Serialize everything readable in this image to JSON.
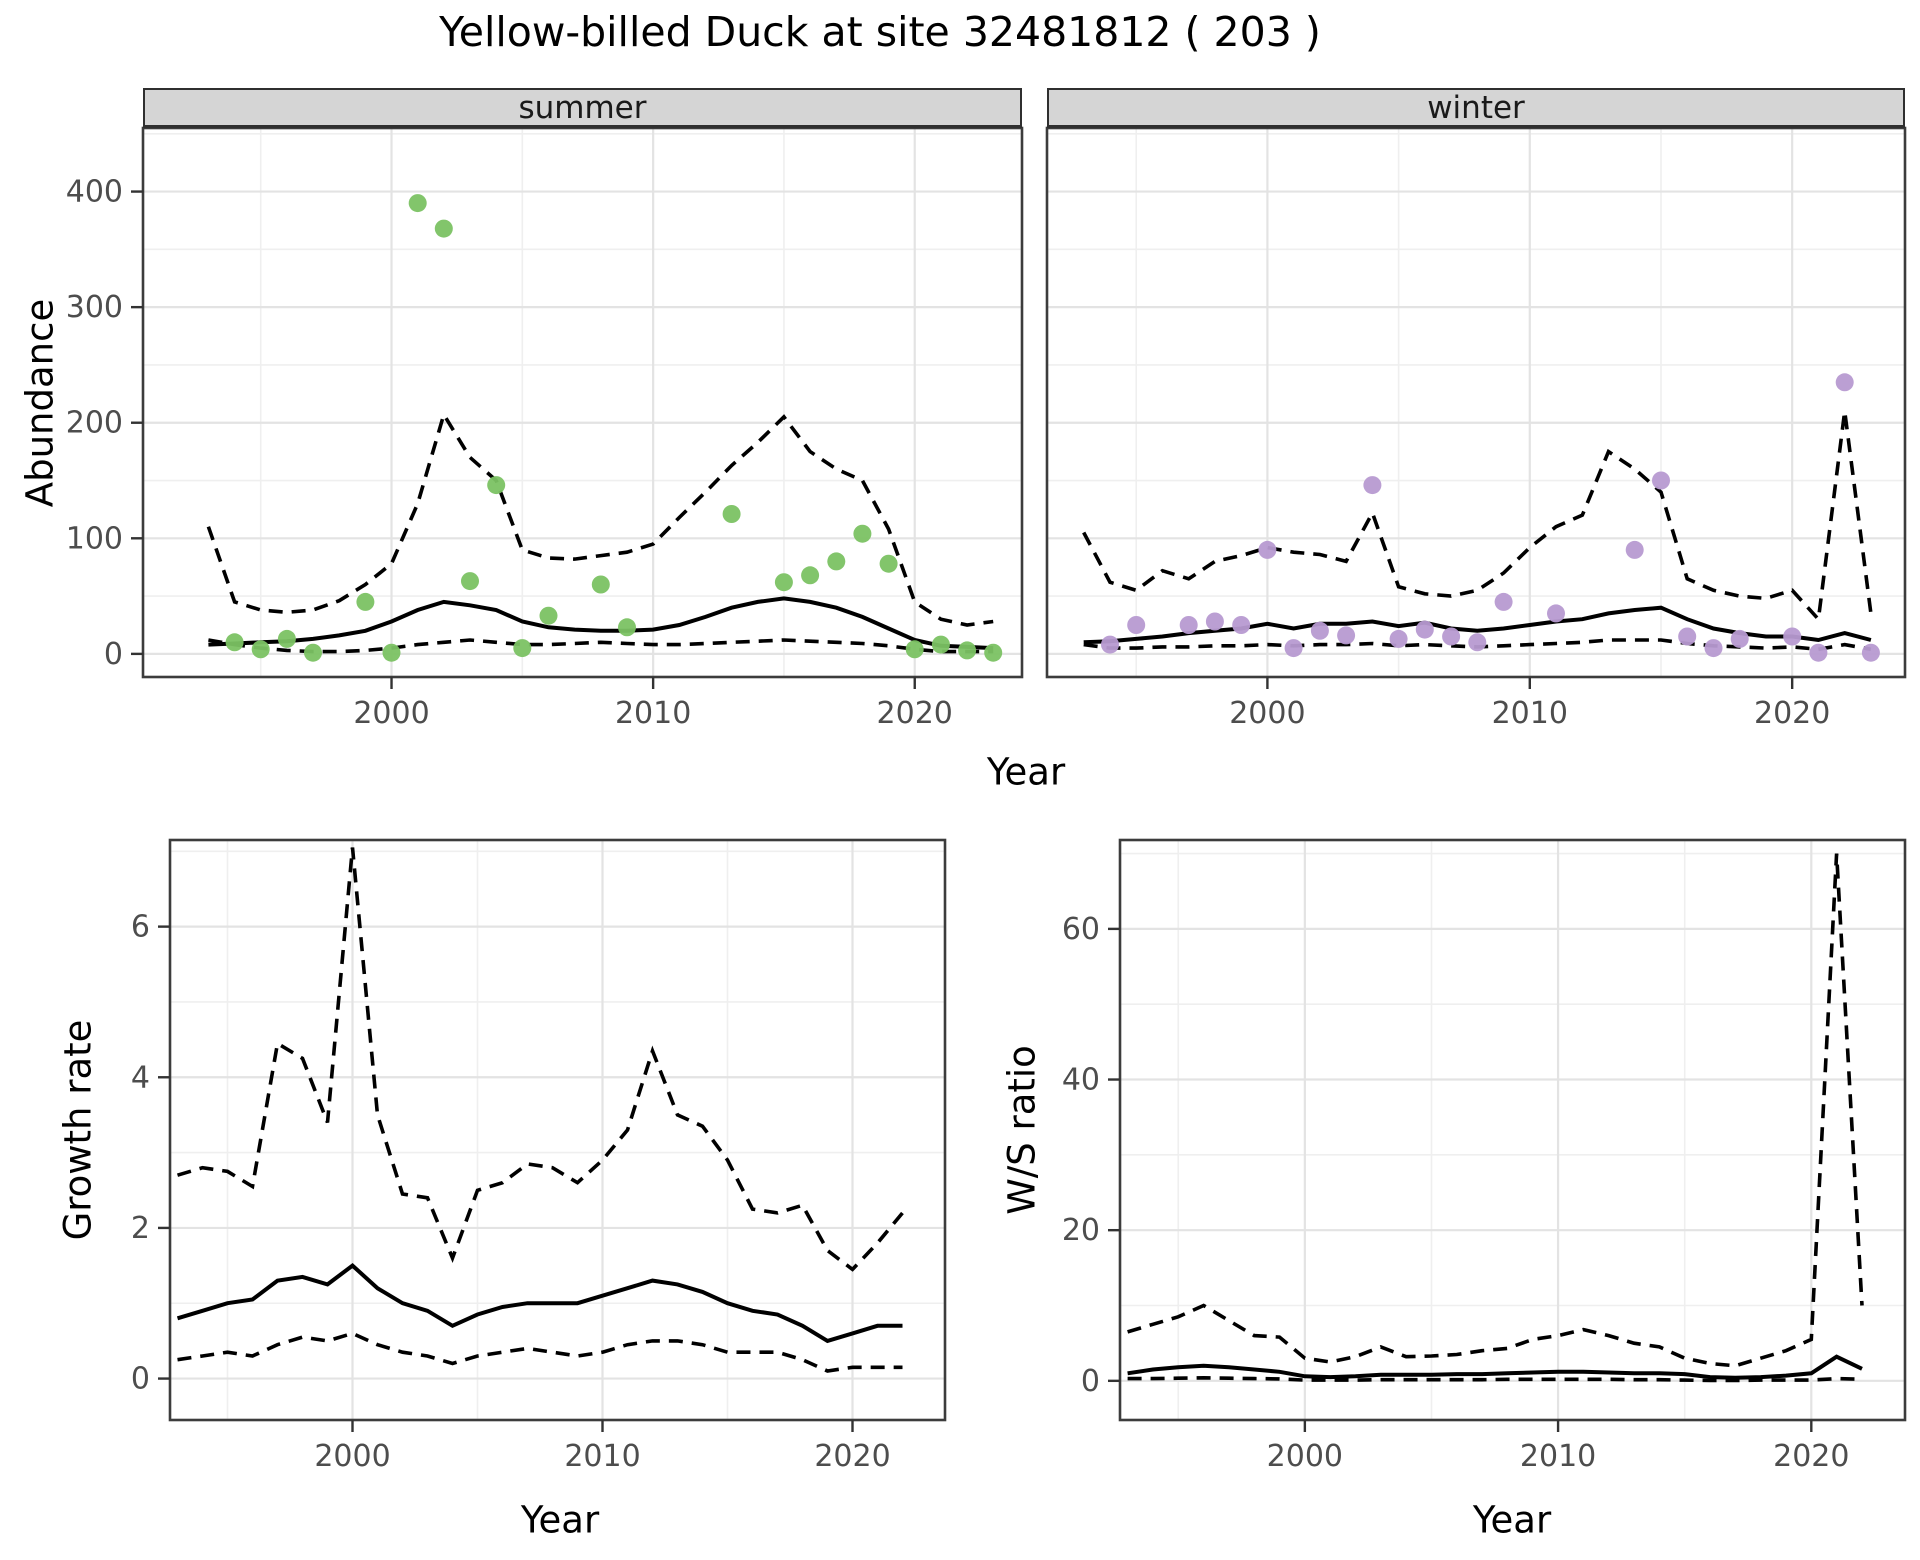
{
  "title": "Yellow-billed Duck at site 32481812 ( 203 )",
  "colors": {
    "summer_point": "#7bc263",
    "winter_point": "#b79ad1",
    "line": "#000000",
    "strip_background": "#d5d5d5",
    "grid_major": "#e3e3e3",
    "grid_minor": "#efefef",
    "panel_border": "#3c3c3c",
    "tick_text": "#4d4d4d"
  },
  "chart_data": [
    {
      "id": "abundance-summer",
      "type": "scatter",
      "facet_label": "summer",
      "xlabel": "Year",
      "ylabel": "Abundance",
      "x_ticks": [
        2000,
        2010,
        2020
      ],
      "y_ticks": [
        0,
        100,
        200,
        300,
        400
      ],
      "x_minor": [
        1995,
        2005,
        2015
      ],
      "y_minor": [
        50,
        150,
        250,
        350,
        450
      ],
      "xlim": [
        1990.5,
        2024.1
      ],
      "ylim": [
        -20,
        455
      ],
      "grid": true,
      "legend": "none",
      "point_color": "#7bc263",
      "points": {
        "years": [
          1994,
          1995,
          1996,
          1997,
          1999,
          2000,
          2001,
          2002,
          2003,
          2004,
          2005,
          2006,
          2008,
          2009,
          2013,
          2015,
          2016,
          2017,
          2018,
          2019,
          2020,
          2021,
          2022,
          2023
        ],
        "values": [
          10,
          4,
          13,
          1,
          45,
          1,
          390,
          368,
          63,
          146,
          5,
          33,
          60,
          23,
          121,
          62,
          68,
          80,
          104,
          78,
          4,
          8,
          3,
          1
        ]
      },
      "lines": {
        "years": [
          1993,
          1994,
          1995,
          1996,
          1997,
          1998,
          1999,
          2000,
          2001,
          2002,
          2003,
          2004,
          2005,
          2006,
          2007,
          2008,
          2009,
          2010,
          2011,
          2012,
          2013,
          2014,
          2015,
          2016,
          2017,
          2018,
          2019,
          2020,
          2021,
          2022,
          2023
        ],
        "median": [
          8,
          9,
          10,
          11,
          13,
          16,
          20,
          28,
          38,
          45,
          42,
          38,
          28,
          23,
          21,
          20,
          20,
          21,
          25,
          32,
          40,
          45,
          48,
          45,
          40,
          32,
          22,
          12,
          7,
          6,
          5
        ],
        "upper": [
          110,
          45,
          38,
          36,
          38,
          46,
          60,
          78,
          130,
          207,
          170,
          150,
          90,
          83,
          82,
          85,
          88,
          95,
          118,
          140,
          163,
          183,
          205,
          175,
          160,
          150,
          108,
          45,
          30,
          25,
          28
        ],
        "lower": [
          12,
          8,
          5,
          3,
          2,
          2,
          3,
          5,
          8,
          10,
          12,
          10,
          8,
          8,
          9,
          10,
          9,
          8,
          8,
          9,
          10,
          11,
          12,
          11,
          10,
          9,
          7,
          4,
          2,
          2,
          2
        ]
      }
    },
    {
      "id": "abundance-winter",
      "type": "scatter",
      "facet_label": "winter",
      "xlabel": "Year",
      "ylabel": "Abundance",
      "x_ticks": [
        2000,
        2010,
        2020
      ],
      "y_ticks": [
        0,
        100,
        200,
        300,
        400
      ],
      "x_minor": [
        1995,
        2005,
        2015
      ],
      "y_minor": [
        50,
        150,
        250,
        350,
        450
      ],
      "xlim": [
        1991.6,
        2024.3
      ],
      "ylim": [
        -20,
        455
      ],
      "grid": true,
      "legend": "none",
      "point_color": "#b79ad1",
      "points": {
        "years": [
          1994,
          1995,
          1997,
          1998,
          1999,
          2000,
          2001,
          2002,
          2003,
          2004,
          2005,
          2006,
          2007,
          2008,
          2009,
          2011,
          2014,
          2015,
          2016,
          2017,
          2018,
          2020,
          2021,
          2022,
          2023
        ],
        "values": [
          8,
          25,
          25,
          28,
          25,
          90,
          5,
          20,
          16,
          146,
          13,
          21,
          15,
          10,
          45,
          35,
          90,
          150,
          15,
          5,
          13,
          15,
          1,
          235,
          1
        ]
      },
      "lines": {
        "years": [
          1993,
          1994,
          1995,
          1996,
          1997,
          1998,
          1999,
          2000,
          2001,
          2002,
          2003,
          2004,
          2005,
          2006,
          2007,
          2008,
          2009,
          2010,
          2011,
          2012,
          2013,
          2014,
          2015,
          2016,
          2017,
          2018,
          2019,
          2020,
          2021,
          2022,
          2023
        ],
        "median": [
          10,
          11,
          13,
          15,
          18,
          20,
          22,
          26,
          22,
          26,
          26,
          28,
          24,
          27,
          22,
          20,
          22,
          25,
          28,
          30,
          35,
          38,
          40,
          30,
          22,
          18,
          15,
          15,
          12,
          18,
          12
        ],
        "upper": [
          105,
          62,
          55,
          72,
          65,
          80,
          85,
          92,
          88,
          86,
          80,
          122,
          58,
          52,
          50,
          55,
          70,
          92,
          110,
          120,
          175,
          160,
          140,
          65,
          55,
          50,
          48,
          55,
          30,
          210,
          35
        ],
        "lower": [
          8,
          5,
          5,
          6,
          6,
          7,
          7,
          8,
          7,
          8,
          8,
          9,
          7,
          8,
          7,
          6,
          7,
          8,
          9,
          10,
          12,
          12,
          12,
          9,
          7,
          6,
          5,
          6,
          4,
          8,
          4
        ]
      }
    },
    {
      "id": "growth-rate",
      "type": "line",
      "facet_label": "",
      "xlabel": "Year",
      "ylabel": "Growth rate",
      "x_ticks": [
        2000,
        2010,
        2020
      ],
      "y_ticks": [
        0,
        2,
        4,
        6
      ],
      "x_minor": [
        1995,
        2005,
        2015
      ],
      "y_minor": [
        1,
        3,
        5,
        7
      ],
      "xlim": [
        1992.7,
        2023.7
      ],
      "ylim": [
        -0.55,
        7.15
      ],
      "grid": true,
      "legend": "none",
      "lines": {
        "years": [
          1993,
          1994,
          1995,
          1996,
          1997,
          1998,
          1999,
          2000,
          2001,
          2002,
          2003,
          2004,
          2005,
          2006,
          2007,
          2008,
          2009,
          2010,
          2011,
          2012,
          2013,
          2014,
          2015,
          2016,
          2017,
          2018,
          2019,
          2020,
          2021,
          2022
        ],
        "median": [
          0.8,
          0.9,
          1.0,
          1.05,
          1.3,
          1.35,
          1.25,
          1.5,
          1.2,
          1.0,
          0.9,
          0.7,
          0.85,
          0.95,
          1.0,
          1.0,
          1.0,
          1.1,
          1.2,
          1.3,
          1.25,
          1.15,
          1.0,
          0.9,
          0.85,
          0.7,
          0.5,
          0.6,
          0.7,
          0.7
        ],
        "upper": [
          2.7,
          2.8,
          2.75,
          2.55,
          4.45,
          4.25,
          3.4,
          7.05,
          3.5,
          2.45,
          2.4,
          1.6,
          2.5,
          2.6,
          2.85,
          2.8,
          2.6,
          2.9,
          3.3,
          4.35,
          3.5,
          3.35,
          2.9,
          2.25,
          2.2,
          2.3,
          1.7,
          1.45,
          1.8,
          2.2
        ],
        "lower": [
          0.25,
          0.3,
          0.35,
          0.3,
          0.45,
          0.55,
          0.5,
          0.6,
          0.45,
          0.35,
          0.3,
          0.2,
          0.3,
          0.35,
          0.4,
          0.35,
          0.3,
          0.35,
          0.45,
          0.5,
          0.5,
          0.45,
          0.35,
          0.35,
          0.35,
          0.25,
          0.1,
          0.15,
          0.15,
          0.15
        ]
      }
    },
    {
      "id": "ws-ratio",
      "type": "line",
      "facet_label": "",
      "xlabel": "Year",
      "ylabel": "W/S ratio",
      "x_ticks": [
        2000,
        2010,
        2020
      ],
      "y_ticks": [
        0,
        20,
        40,
        60
      ],
      "x_minor": [
        1995,
        2005,
        2015
      ],
      "y_minor": [
        10,
        30,
        50,
        70
      ],
      "xlim": [
        1992.7,
        2023.7
      ],
      "ylim": [
        -5.2,
        71.8
      ],
      "grid": true,
      "legend": "none",
      "lines": {
        "years": [
          1993,
          1994,
          1995,
          1996,
          1997,
          1998,
          1999,
          2000,
          2001,
          2002,
          2003,
          2004,
          2005,
          2006,
          2007,
          2008,
          2009,
          2010,
          2011,
          2012,
          2013,
          2014,
          2015,
          2016,
          2017,
          2018,
          2019,
          2020,
          2021,
          2022
        ],
        "median": [
          1.0,
          1.5,
          1.8,
          2.0,
          1.8,
          1.5,
          1.2,
          0.6,
          0.5,
          0.6,
          0.8,
          0.8,
          0.8,
          0.9,
          0.9,
          1.0,
          1.1,
          1.2,
          1.2,
          1.1,
          1.0,
          1.0,
          0.9,
          0.5,
          0.4,
          0.5,
          0.7,
          1.0,
          3.2,
          1.6
        ],
        "upper": [
          6.5,
          7.5,
          8.5,
          10.0,
          8.0,
          6.0,
          5.8,
          3.0,
          2.5,
          3.2,
          4.5,
          3.2,
          3.3,
          3.5,
          4.0,
          4.3,
          5.5,
          6.0,
          6.8,
          6.0,
          5.0,
          4.5,
          3.0,
          2.3,
          2.0,
          3.0,
          4.0,
          5.5,
          70.0,
          10.0
        ],
        "lower": [
          0.3,
          0.3,
          0.35,
          0.4,
          0.35,
          0.3,
          0.25,
          0.1,
          0.1,
          0.1,
          0.15,
          0.15,
          0.15,
          0.15,
          0.15,
          0.2,
          0.2,
          0.2,
          0.2,
          0.2,
          0.15,
          0.15,
          0.1,
          0.05,
          0.05,
          0.1,
          0.1,
          0.1,
          0.3,
          0.2
        ]
      }
    }
  ]
}
